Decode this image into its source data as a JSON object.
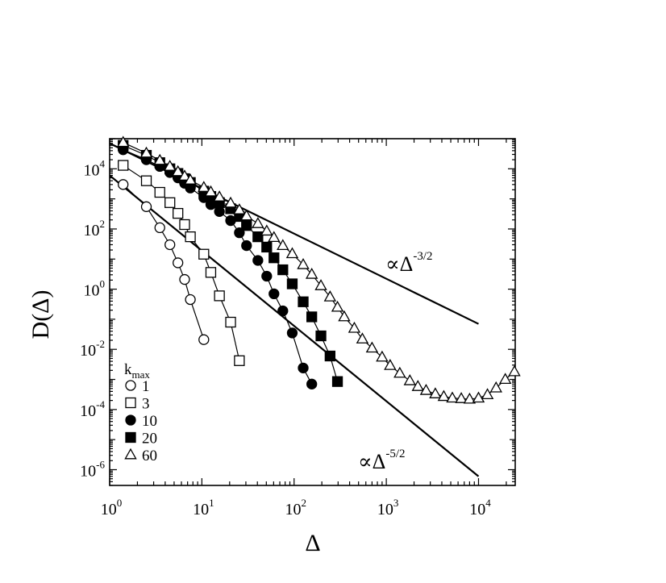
{
  "chart_data": {
    "type": "scatter",
    "xlabel": "Δ",
    "ylabel": "D(Δ)",
    "xscale": "log",
    "yscale": "log",
    "xlim": [
      1,
      25000
    ],
    "ylim": [
      3e-07,
      100000.0
    ],
    "xticks": [
      {
        "base": "10",
        "exp": "0",
        "value": 1
      },
      {
        "base": "10",
        "exp": "1",
        "value": 10
      },
      {
        "base": "10",
        "exp": "2",
        "value": 100
      },
      {
        "base": "10",
        "exp": "3",
        "value": 1000
      },
      {
        "base": "10",
        "exp": "4",
        "value": 10000
      }
    ],
    "yticks": [
      {
        "base": "10",
        "exp": "4",
        "value": 10000
      },
      {
        "base": "10",
        "exp": "2",
        "value": 100
      },
      {
        "base": "10",
        "exp": "0",
        "value": 1
      },
      {
        "base": "10",
        "exp": "-2",
        "value": 0.01
      },
      {
        "base": "10",
        "exp": "-4",
        "value": 0.0001
      },
      {
        "base": "10",
        "exp": "-6",
        "value": 1e-06
      }
    ],
    "legend": {
      "title_main": "k",
      "title_sub": "max",
      "position": "lower-left"
    },
    "series": [
      {
        "name": "1",
        "marker": "circle",
        "filled": false,
        "x": [
          1.4,
          2.5,
          3.5,
          4.5,
          5.5,
          6.5,
          7.5,
          10.5
        ],
        "y": [
          3000,
          550,
          110,
          30,
          7.5,
          2.1,
          0.45,
          0.021
        ]
      },
      {
        "name": "3",
        "marker": "square",
        "filled": false,
        "x": [
          1.4,
          2.5,
          3.5,
          4.5,
          5.5,
          6.5,
          7.5,
          10.5,
          12.5,
          15.5,
          20.5,
          25.5
        ],
        "y": [
          13000,
          4000,
          1650,
          750,
          330,
          140,
          55,
          14.5,
          3.6,
          0.6,
          0.08,
          0.0042
        ]
      },
      {
        "name": "10",
        "marker": "circle",
        "filled": true,
        "x": [
          1.4,
          2.5,
          3.5,
          4.5,
          5.5,
          6.5,
          7.5,
          10.5,
          12.5,
          15.5,
          20.5,
          25.5,
          30.5,
          40.5,
          50.5,
          60.5,
          75.5,
          95.5,
          125.5,
          155.5
        ],
        "y": [
          43000,
          20000,
          12000,
          7500,
          5000,
          3300,
          2300,
          1100,
          650,
          380,
          190,
          75,
          28,
          9,
          2.7,
          0.7,
          0.19,
          0.035,
          0.0024,
          0.0007
        ]
      },
      {
        "name": "20",
        "marker": "square",
        "filled": true,
        "x": [
          1.4,
          2.5,
          3.5,
          4.5,
          5.5,
          6.5,
          7.5,
          10.5,
          12.5,
          15.5,
          20.5,
          25.5,
          30.5,
          40.5,
          50.5,
          60.5,
          75.5,
          95.5,
          125.5,
          155.5,
          195.5,
          245.5,
          295.5
        ],
        "y": [
          60000,
          28000,
          16000,
          10000,
          7000,
          4700,
          3500,
          1800,
          1200,
          750,
          470,
          260,
          130,
          55,
          25,
          11,
          4.4,
          1.5,
          0.38,
          0.12,
          0.028,
          0.006,
          0.00085
        ]
      },
      {
        "name": "60",
        "marker": "triangle",
        "filled": false,
        "x": [
          1.4,
          2.5,
          3.5,
          4.5,
          5.5,
          6.5,
          7.5,
          10.5,
          12.5,
          15.5,
          20.5,
          25.5,
          30.5,
          40.5,
          50.5,
          60.5,
          75.5,
          95.5,
          125.5,
          155.5,
          195.5,
          245.5,
          295.5,
          350,
          450,
          550,
          700,
          900,
          1100,
          1400,
          1800,
          2200,
          2700,
          3400,
          4200,
          5200,
          6500,
          8000,
          10000,
          12500,
          15500,
          19500,
          24500
        ],
        "y": [
          75000,
          33000,
          19000,
          12000,
          8000,
          5700,
          4200,
          2400,
          1700,
          1150,
          720,
          430,
          270,
          150,
          85,
          52,
          28,
          15,
          6.5,
          3.1,
          1.3,
          0.55,
          0.25,
          0.12,
          0.05,
          0.022,
          0.011,
          0.0055,
          0.0029,
          0.0016,
          0.0009,
          0.00058,
          0.00043,
          0.00033,
          0.00027,
          0.00024,
          0.00023,
          0.00022,
          0.00024,
          0.00031,
          0.00052,
          0.001,
          0.0018
        ]
      }
    ],
    "reference_lines": [
      {
        "label_prefix": "∝Δ",
        "label_exp": "-3/2",
        "x": [
          1,
          10000
        ],
        "y": [
          70000,
          0.07
        ]
      },
      {
        "label_prefix": "∝Δ",
        "label_exp": "-5/2",
        "x": [
          1,
          10000
        ],
        "y": [
          6000,
          6e-07
        ]
      }
    ]
  }
}
